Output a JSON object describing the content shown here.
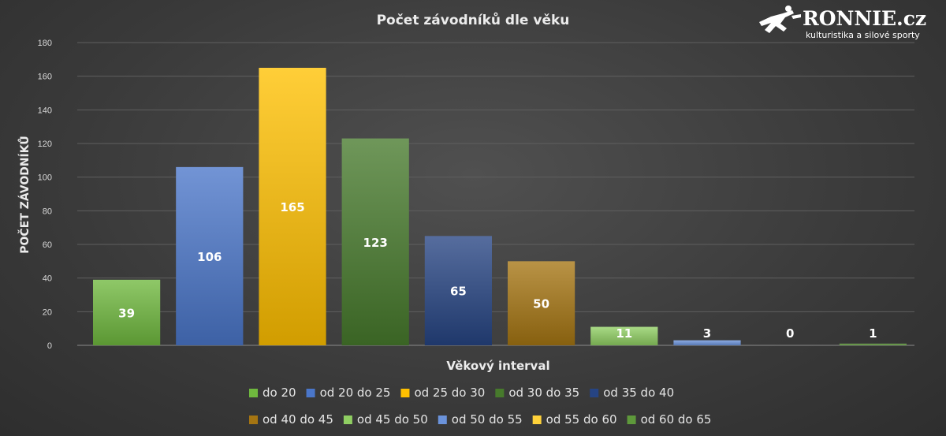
{
  "brand": {
    "name": "RONNIE.cz",
    "tagline": "kulturistika a silové sporty"
  },
  "chart_data": {
    "type": "bar",
    "title": "Počet závodníků dle věku",
    "xlabel": "Věkový interval",
    "ylabel": "POČET ZÁVODNÍKŮ",
    "ylim": [
      0,
      180
    ],
    "yticks": [
      0,
      20,
      40,
      60,
      80,
      100,
      120,
      140,
      160,
      180
    ],
    "grid": true,
    "legend_position": "bottom",
    "series": [
      {
        "name": "do 20",
        "values": [
          39
        ],
        "color": "#6fb83e"
      },
      {
        "name": "od 20 do 25",
        "values": [
          106
        ],
        "color": "#4a76c9"
      },
      {
        "name": "od 25 do 30",
        "values": [
          165
        ],
        "color": "#ffc000"
      },
      {
        "name": "od 30 do 35",
        "values": [
          123
        ],
        "color": "#477a2c"
      },
      {
        "name": "od 35 do 40",
        "values": [
          65
        ],
        "color": "#264483"
      },
      {
        "name": "od 40 do 45",
        "values": [
          50
        ],
        "color": "#a57512"
      },
      {
        "name": "od 45 do 50",
        "values": [
          11
        ],
        "color": "#8fce62"
      },
      {
        "name": "od 50 do 55",
        "values": [
          3
        ],
        "color": "#6b93db"
      },
      {
        "name": "od 55 do 60",
        "values": [
          0
        ],
        "color": "#ffd23a"
      },
      {
        "name": "od 60 do 65",
        "values": [
          1
        ],
        "color": "#5e993b"
      }
    ]
  }
}
